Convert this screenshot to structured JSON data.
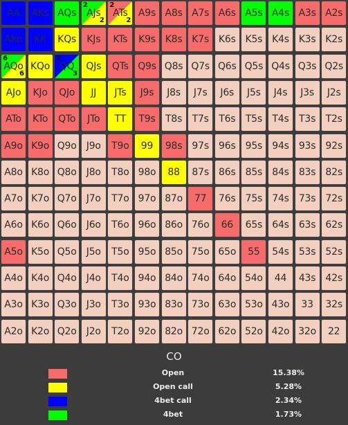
{
  "colors": {
    "open": "#f76b6b",
    "open_call": "#ffff00",
    "fourbet_call": "#0000ff",
    "fourbet": "#00ff00",
    "fold": "#f2cfbf"
  },
  "grid": [
    [
      {
        "label": "AA",
        "action": "fourbet_call"
      },
      {
        "label": "AKs",
        "action": "fourbet_call"
      },
      {
        "label": "AQs",
        "action": "fourbet"
      },
      {
        "label": "AJs",
        "action": "split",
        "colors": [
          "fourbet",
          "open_call"
        ],
        "nums": [
          "2",
          "2"
        ]
      },
      {
        "label": "ATs",
        "action": "split",
        "colors": [
          "open",
          "open_call"
        ],
        "nums": [
          "2",
          "2"
        ]
      },
      {
        "label": "A9s",
        "action": "open"
      },
      {
        "label": "A8s",
        "action": "open"
      },
      {
        "label": "A7s",
        "action": "open"
      },
      {
        "label": "A6s",
        "action": "open"
      },
      {
        "label": "A5s",
        "action": "fourbet"
      },
      {
        "label": "A4s",
        "action": "fourbet"
      },
      {
        "label": "A3s",
        "action": "open"
      },
      {
        "label": "A2s",
        "action": "open"
      }
    ],
    [
      {
        "label": "AKo",
        "action": "fourbet_call"
      },
      {
        "label": "KK",
        "action": "fourbet_call"
      },
      {
        "label": "KQs",
        "action": "open_call"
      },
      {
        "label": "KJs",
        "action": "open"
      },
      {
        "label": "KTs",
        "action": "open"
      },
      {
        "label": "K9s",
        "action": "open"
      },
      {
        "label": "K8s",
        "action": "open"
      },
      {
        "label": "K7s",
        "action": "open"
      },
      {
        "label": "K6s",
        "action": "fold"
      },
      {
        "label": "K5s",
        "action": "fold"
      },
      {
        "label": "K4s",
        "action": "fold"
      },
      {
        "label": "K3s",
        "action": "fold"
      },
      {
        "label": "K2s",
        "action": "fold"
      }
    ],
    [
      {
        "label": "AQo",
        "action": "split",
        "colors": [
          "fourbet",
          "open_call"
        ],
        "nums": [
          "6",
          "6"
        ]
      },
      {
        "label": "KQo",
        "action": "open_call"
      },
      {
        "label": "QQ",
        "action": "split",
        "colors": [
          "fourbet_call",
          "fourbet"
        ],
        "nums": [
          "2",
          "3"
        ]
      },
      {
        "label": "QJs",
        "action": "open_call"
      },
      {
        "label": "QTs",
        "action": "open"
      },
      {
        "label": "Q9s",
        "action": "open"
      },
      {
        "label": "Q8s",
        "action": "fold"
      },
      {
        "label": "Q7s",
        "action": "fold"
      },
      {
        "label": "Q6s",
        "action": "fold"
      },
      {
        "label": "Q5s",
        "action": "fold"
      },
      {
        "label": "Q4s",
        "action": "fold"
      },
      {
        "label": "Q3s",
        "action": "fold"
      },
      {
        "label": "Q2s",
        "action": "fold"
      }
    ],
    [
      {
        "label": "AJo",
        "action": "open_call"
      },
      {
        "label": "KJo",
        "action": "open"
      },
      {
        "label": "QJo",
        "action": "open"
      },
      {
        "label": "JJ",
        "action": "open_call"
      },
      {
        "label": "JTs",
        "action": "open_call"
      },
      {
        "label": "J9s",
        "action": "open"
      },
      {
        "label": "J8s",
        "action": "fold"
      },
      {
        "label": "J7s",
        "action": "fold"
      },
      {
        "label": "J6s",
        "action": "fold"
      },
      {
        "label": "J5s",
        "action": "fold"
      },
      {
        "label": "J4s",
        "action": "fold"
      },
      {
        "label": "J3s",
        "action": "fold"
      },
      {
        "label": "J2s",
        "action": "fold"
      }
    ],
    [
      {
        "label": "ATo",
        "action": "open"
      },
      {
        "label": "KTo",
        "action": "open"
      },
      {
        "label": "QTo",
        "action": "open"
      },
      {
        "label": "JTo",
        "action": "open"
      },
      {
        "label": "TT",
        "action": "open_call"
      },
      {
        "label": "T9s",
        "action": "open"
      },
      {
        "label": "T8s",
        "action": "fold"
      },
      {
        "label": "T7s",
        "action": "fold"
      },
      {
        "label": "T6s",
        "action": "fold"
      },
      {
        "label": "T5s",
        "action": "fold"
      },
      {
        "label": "T4s",
        "action": "fold"
      },
      {
        "label": "T3s",
        "action": "fold"
      },
      {
        "label": "T2s",
        "action": "fold"
      }
    ],
    [
      {
        "label": "A9o",
        "action": "open"
      },
      {
        "label": "K9o",
        "action": "open"
      },
      {
        "label": "Q9o",
        "action": "fold"
      },
      {
        "label": "J9o",
        "action": "fold"
      },
      {
        "label": "T9o",
        "action": "open"
      },
      {
        "label": "99",
        "action": "open_call"
      },
      {
        "label": "98s",
        "action": "open"
      },
      {
        "label": "97s",
        "action": "fold"
      },
      {
        "label": "96s",
        "action": "fold"
      },
      {
        "label": "95s",
        "action": "fold"
      },
      {
        "label": "94s",
        "action": "fold"
      },
      {
        "label": "93s",
        "action": "fold"
      },
      {
        "label": "92s",
        "action": "fold"
      }
    ],
    [
      {
        "label": "A8o",
        "action": "fold"
      },
      {
        "label": "K8o",
        "action": "fold"
      },
      {
        "label": "Q8o",
        "action": "fold"
      },
      {
        "label": "J8o",
        "action": "fold"
      },
      {
        "label": "T8o",
        "action": "fold"
      },
      {
        "label": "98o",
        "action": "fold"
      },
      {
        "label": "88",
        "action": "open_call"
      },
      {
        "label": "87s",
        "action": "fold"
      },
      {
        "label": "86s",
        "action": "fold"
      },
      {
        "label": "85s",
        "action": "fold"
      },
      {
        "label": "84s",
        "action": "fold"
      },
      {
        "label": "83s",
        "action": "fold"
      },
      {
        "label": "82s",
        "action": "fold"
      }
    ],
    [
      {
        "label": "A7o",
        "action": "fold"
      },
      {
        "label": "K7o",
        "action": "fold"
      },
      {
        "label": "Q7o",
        "action": "fold"
      },
      {
        "label": "J7o",
        "action": "fold"
      },
      {
        "label": "T7o",
        "action": "fold"
      },
      {
        "label": "97o",
        "action": "fold"
      },
      {
        "label": "87o",
        "action": "fold"
      },
      {
        "label": "77",
        "action": "open"
      },
      {
        "label": "76s",
        "action": "fold"
      },
      {
        "label": "75s",
        "action": "fold"
      },
      {
        "label": "74s",
        "action": "fold"
      },
      {
        "label": "73s",
        "action": "fold"
      },
      {
        "label": "72s",
        "action": "fold"
      }
    ],
    [
      {
        "label": "A6o",
        "action": "fold"
      },
      {
        "label": "K6o",
        "action": "fold"
      },
      {
        "label": "Q6o",
        "action": "fold"
      },
      {
        "label": "J6o",
        "action": "fold"
      },
      {
        "label": "T6o",
        "action": "fold"
      },
      {
        "label": "96o",
        "action": "fold"
      },
      {
        "label": "86o",
        "action": "fold"
      },
      {
        "label": "76o",
        "action": "fold"
      },
      {
        "label": "66",
        "action": "open"
      },
      {
        "label": "65s",
        "action": "fold"
      },
      {
        "label": "64s",
        "action": "fold"
      },
      {
        "label": "63s",
        "action": "fold"
      },
      {
        "label": "62s",
        "action": "fold"
      }
    ],
    [
      {
        "label": "A5o",
        "action": "open"
      },
      {
        "label": "K5o",
        "action": "fold"
      },
      {
        "label": "Q5o",
        "action": "fold"
      },
      {
        "label": "J5o",
        "action": "fold"
      },
      {
        "label": "T5o",
        "action": "fold"
      },
      {
        "label": "95o",
        "action": "fold"
      },
      {
        "label": "85o",
        "action": "fold"
      },
      {
        "label": "75o",
        "action": "fold"
      },
      {
        "label": "65o",
        "action": "fold"
      },
      {
        "label": "55",
        "action": "open"
      },
      {
        "label": "54s",
        "action": "fold"
      },
      {
        "label": "53s",
        "action": "fold"
      },
      {
        "label": "52s",
        "action": "fold"
      }
    ],
    [
      {
        "label": "A4o",
        "action": "fold"
      },
      {
        "label": "K4o",
        "action": "fold"
      },
      {
        "label": "Q4o",
        "action": "fold"
      },
      {
        "label": "J4o",
        "action": "fold"
      },
      {
        "label": "T4o",
        "action": "fold"
      },
      {
        "label": "94o",
        "action": "fold"
      },
      {
        "label": "84o",
        "action": "fold"
      },
      {
        "label": "74o",
        "action": "fold"
      },
      {
        "label": "64o",
        "action": "fold"
      },
      {
        "label": "54o",
        "action": "fold"
      },
      {
        "label": "44",
        "action": "fold"
      },
      {
        "label": "43s",
        "action": "fold"
      },
      {
        "label": "42s",
        "action": "fold"
      }
    ],
    [
      {
        "label": "A3o",
        "action": "fold"
      },
      {
        "label": "K3o",
        "action": "fold"
      },
      {
        "label": "Q3o",
        "action": "fold"
      },
      {
        "label": "J3o",
        "action": "fold"
      },
      {
        "label": "T3o",
        "action": "fold"
      },
      {
        "label": "93o",
        "action": "fold"
      },
      {
        "label": "83o",
        "action": "fold"
      },
      {
        "label": "73o",
        "action": "fold"
      },
      {
        "label": "63o",
        "action": "fold"
      },
      {
        "label": "53o",
        "action": "fold"
      },
      {
        "label": "43o",
        "action": "fold"
      },
      {
        "label": "33",
        "action": "fold"
      },
      {
        "label": "32s",
        "action": "fold"
      }
    ],
    [
      {
        "label": "A2o",
        "action": "fold"
      },
      {
        "label": "K2o",
        "action": "fold"
      },
      {
        "label": "Q2o",
        "action": "fold"
      },
      {
        "label": "J2o",
        "action": "fold"
      },
      {
        "label": "T2o",
        "action": "fold"
      },
      {
        "label": "92o",
        "action": "fold"
      },
      {
        "label": "82o",
        "action": "fold"
      },
      {
        "label": "72o",
        "action": "fold"
      },
      {
        "label": "62o",
        "action": "fold"
      },
      {
        "label": "52o",
        "action": "fold"
      },
      {
        "label": "42o",
        "action": "fold"
      },
      {
        "label": "32o",
        "action": "fold"
      },
      {
        "label": "22",
        "action": "fold"
      }
    ]
  ],
  "legend": {
    "title": "CO",
    "items": [
      {
        "label": "Open",
        "value": "15.38%",
        "color_key": "open"
      },
      {
        "label": "Open call",
        "value": "5.28%",
        "color_key": "open_call"
      },
      {
        "label": "4bet call",
        "value": "2.34%",
        "color_key": "fourbet_call"
      },
      {
        "label": "4bet",
        "value": "1.73%",
        "color_key": "fourbet"
      }
    ]
  }
}
